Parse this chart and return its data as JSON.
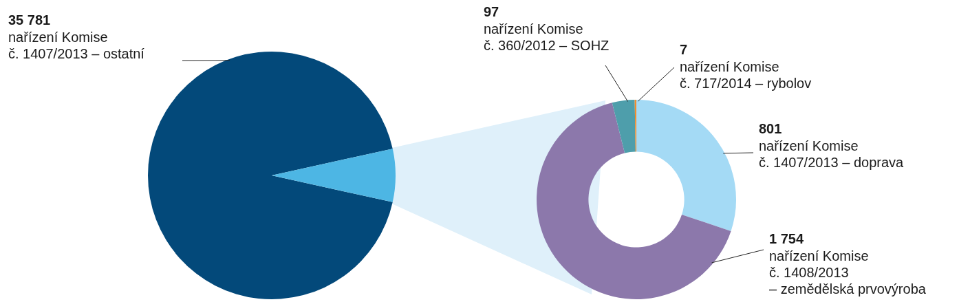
{
  "chart_data": [
    {
      "type": "pie",
      "categories": [
        "nařízení Komise\nč. 1407/2013 – ostatní",
        null
      ],
      "values": [
        35781,
        2659
      ],
      "colors": [
        "#03497a",
        "#4db6e4"
      ],
      "value_labels": [
        "35 781",
        null
      ]
    },
    {
      "type": "donut",
      "categories": [
        "nařízení Komise\nč. 1407/2013 – doprava",
        "nařízení Komise\nč. 1408/2013\n– zemědělská prvovýroba",
        "nařízení Komise\nč. 360/2012 – SOHZ",
        "nařízení Komise\nč. 717/2014 – rybolov"
      ],
      "values": [
        801,
        1754,
        97,
        7
      ],
      "colors": [
        "#a4daf5",
        "#8c78ab",
        "#4e9eab",
        "#f08c2c"
      ],
      "value_labels": [
        "801",
        "1 754",
        "97",
        "7"
      ]
    }
  ]
}
